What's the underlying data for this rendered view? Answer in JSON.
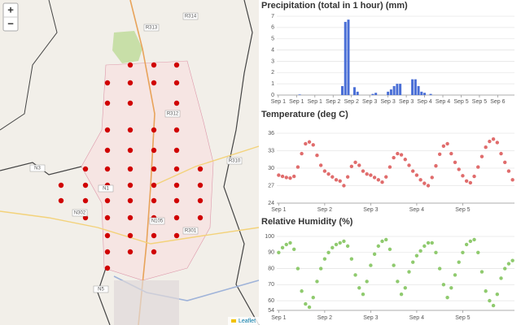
{
  "map": {
    "zoom_in": "+",
    "zoom_out": "−",
    "attribution": "Leaflet",
    "road_labels": [
      "R314",
      "R313",
      "R312",
      "N1",
      "N3",
      "R310",
      "N105",
      "R301",
      "N302",
      "N5"
    ]
  },
  "chart_data": [
    {
      "type": "bar",
      "title": "Precipitation (total in 1 hour) (mm)",
      "color": "#4a6fd6",
      "categories": [
        "Sep 1",
        null,
        null,
        null,
        null,
        null,
        "Sep 1",
        null,
        null,
        null,
        null,
        null,
        "Sep 1",
        null,
        null,
        null,
        null,
        null,
        "Sep 2",
        null,
        null,
        null,
        null,
        null,
        "Sep 2",
        null,
        null,
        null,
        null,
        null,
        "Sep 3",
        null,
        null,
        null,
        null,
        null,
        "Sep 3",
        null,
        null,
        null,
        null,
        null,
        "Sep 3",
        null,
        null,
        null,
        null,
        null,
        "Sep 4",
        null,
        null,
        null,
        null,
        null,
        "Sep 4",
        null,
        null,
        null,
        null,
        null,
        "Sep 5",
        null,
        null,
        null,
        null,
        null,
        "Sep 5",
        null,
        null,
        null,
        null,
        null,
        "Sep 6",
        null,
        null,
        null,
        null,
        null
      ],
      "values": [
        0,
        0,
        0,
        0,
        0,
        0,
        0,
        0.05,
        0,
        0,
        0,
        0,
        0,
        0,
        0,
        0,
        0,
        0,
        0,
        0,
        0,
        0.8,
        6.5,
        6.7,
        0,
        0.7,
        0.3,
        0,
        0,
        0,
        0,
        0.1,
        0.2,
        0,
        0,
        0,
        0.3,
        0.5,
        0.8,
        1.0,
        1.0,
        0,
        0,
        0,
        1.4,
        1.4,
        0.8,
        0.3,
        0.2,
        0,
        0.1,
        0,
        0,
        0,
        0,
        0,
        0,
        0,
        0,
        0,
        0,
        0,
        0,
        0,
        0,
        0,
        0,
        0,
        0,
        0,
        0,
        0,
        0,
        0,
        0,
        0,
        0,
        0
      ],
      "ylim": [
        0,
        7
      ],
      "yticks": [
        0,
        1,
        2,
        3,
        4,
        5,
        6,
        7
      ],
      "grid": true
    },
    {
      "type": "scatter",
      "title": "Temperature (deg C)",
      "color": "#e06c6c",
      "categories": [
        "Sep 1",
        null,
        null,
        null,
        null,
        null,
        null,
        null,
        null,
        null,
        null,
        null,
        "Sep 2",
        null,
        null,
        null,
        null,
        null,
        null,
        null,
        null,
        null,
        null,
        null,
        "Sep 3",
        null,
        null,
        null,
        null,
        null,
        null,
        null,
        null,
        null,
        null,
        null,
        "Sep 4",
        null,
        null,
        null,
        null,
        null,
        null,
        null,
        null,
        null,
        null,
        null,
        "Sep 5",
        null,
        null,
        null,
        null,
        null,
        null,
        null,
        null,
        null,
        null,
        null,
        null,
        null
      ],
      "values": [
        28.8,
        28.6,
        28.4,
        28.3,
        28.6,
        30.2,
        32.5,
        34.2,
        34.5,
        34.0,
        32.2,
        30.5,
        29.5,
        29.0,
        28.5,
        28.0,
        27.8,
        27.0,
        28.5,
        30.3,
        31.0,
        30.5,
        29.5,
        29.0,
        28.8,
        28.4,
        28.0,
        27.6,
        28.5,
        30.2,
        31.8,
        32.5,
        32.3,
        31.5,
        30.5,
        29.5,
        28.8,
        28.0,
        27.4,
        27.0,
        28.4,
        30.4,
        32.4,
        33.8,
        34.2,
        32.5,
        31.0,
        29.8,
        28.7,
        27.8,
        27.5,
        28.6,
        30.2,
        32.0,
        33.6,
        34.6,
        35.0,
        34.4,
        32.5,
        31.0,
        29.5,
        28.0
      ],
      "ylim": [
        24,
        36
      ],
      "yticks": [
        24,
        27,
        30,
        33,
        36
      ],
      "grid": true
    },
    {
      "type": "scatter",
      "title": "Relative Humidity (%)",
      "color": "#8fca6e",
      "categories": [
        "Sep 1",
        null,
        null,
        null,
        null,
        null,
        null,
        null,
        null,
        null,
        null,
        null,
        "Sep 2",
        null,
        null,
        null,
        null,
        null,
        null,
        null,
        null,
        null,
        null,
        null,
        "Sep 3",
        null,
        null,
        null,
        null,
        null,
        null,
        null,
        null,
        null,
        null,
        null,
        "Sep 4",
        null,
        null,
        null,
        null,
        null,
        null,
        null,
        null,
        null,
        null,
        null,
        "Sep 5",
        null,
        null,
        null,
        null,
        null,
        null,
        null,
        null,
        null,
        null,
        null,
        null,
        null
      ],
      "values": [
        90,
        93,
        95,
        96,
        92,
        80,
        66,
        58,
        56,
        62,
        72,
        80,
        86,
        90,
        93,
        95,
        96,
        97,
        94,
        86,
        76,
        68,
        64,
        72,
        82,
        89,
        94,
        97,
        98,
        92,
        82,
        72,
        64,
        68,
        78,
        84,
        88,
        91,
        94,
        96,
        96,
        90,
        80,
        70,
        62,
        68,
        76,
        84,
        90,
        95,
        97,
        98,
        90,
        78,
        66,
        60,
        57,
        64,
        74,
        80,
        83,
        85
      ],
      "ylim": [
        54,
        100
      ],
      "yticks": [
        54,
        60,
        70,
        80,
        90,
        100
      ],
      "grid": true
    }
  ]
}
